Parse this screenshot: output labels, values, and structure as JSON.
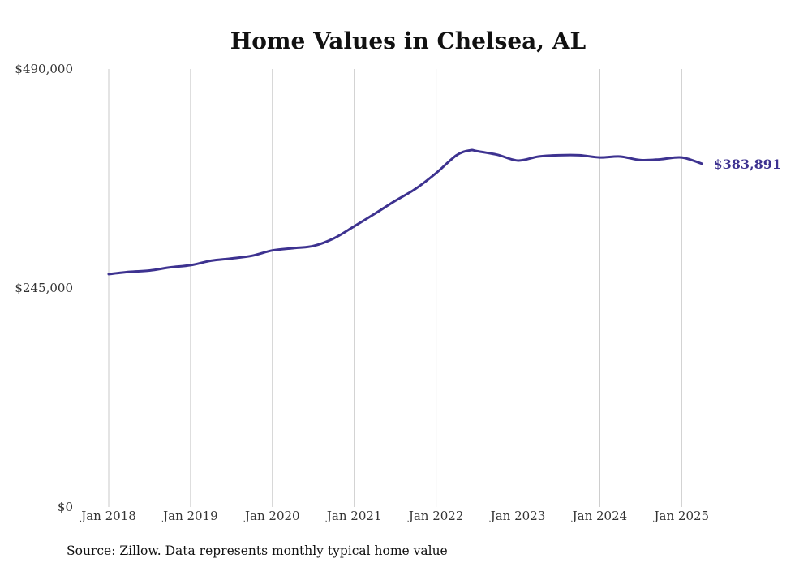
{
  "chart_data": {
    "type": "line",
    "title": "Home Values in Chelsea, AL",
    "xlabel": "",
    "ylabel": "",
    "ylim": [
      0,
      490000
    ],
    "y_ticks": [
      "$0",
      "$245,000",
      "$490,000"
    ],
    "y_tick_values": [
      0,
      245000,
      490000
    ],
    "x_tick_labels": [
      "Jan 2018",
      "Jan 2019",
      "Jan 2020",
      "Jan 2021",
      "Jan 2022",
      "Jan 2023",
      "Jan 2024",
      "Jan 2025"
    ],
    "x_tick_dates": [
      "2018-01",
      "2019-01",
      "2020-01",
      "2021-01",
      "2022-01",
      "2023-01",
      "2024-01",
      "2025-01"
    ],
    "grid": "vertical",
    "series": [
      {
        "color": "#3d3290",
        "end_label": "$383,891",
        "points": [
          {
            "date": "2018-01",
            "value": 260500
          },
          {
            "date": "2018-04",
            "value": 263000
          },
          {
            "date": "2018-07",
            "value": 264500
          },
          {
            "date": "2018-10",
            "value": 268000
          },
          {
            "date": "2019-01",
            "value": 270500
          },
          {
            "date": "2019-04",
            "value": 275500
          },
          {
            "date": "2019-07",
            "value": 278000
          },
          {
            "date": "2019-10",
            "value": 281000
          },
          {
            "date": "2020-01",
            "value": 287000
          },
          {
            "date": "2020-04",
            "value": 289500
          },
          {
            "date": "2020-07",
            "value": 292000
          },
          {
            "date": "2020-10",
            "value": 300500
          },
          {
            "date": "2021-01",
            "value": 314000
          },
          {
            "date": "2021-04",
            "value": 328000
          },
          {
            "date": "2021-07",
            "value": 342500
          },
          {
            "date": "2021-10",
            "value": 356000
          },
          {
            "date": "2022-01",
            "value": 373500
          },
          {
            "date": "2022-04",
            "value": 393500
          },
          {
            "date": "2022-06",
            "value": 399000
          },
          {
            "date": "2022-07",
            "value": 398000
          },
          {
            "date": "2022-10",
            "value": 394000
          },
          {
            "date": "2023-01",
            "value": 387500
          },
          {
            "date": "2023-04",
            "value": 392000
          },
          {
            "date": "2023-07",
            "value": 393500
          },
          {
            "date": "2023-10",
            "value": 393500
          },
          {
            "date": "2024-01",
            "value": 391000
          },
          {
            "date": "2024-04",
            "value": 392000
          },
          {
            "date": "2024-07",
            "value": 388000
          },
          {
            "date": "2024-10",
            "value": 389000
          },
          {
            "date": "2025-01",
            "value": 391000
          },
          {
            "date": "2025-04",
            "value": 383891
          }
        ]
      }
    ]
  },
  "footer": {
    "source": "Source: Zillow. Data represents monthly typical home value"
  }
}
